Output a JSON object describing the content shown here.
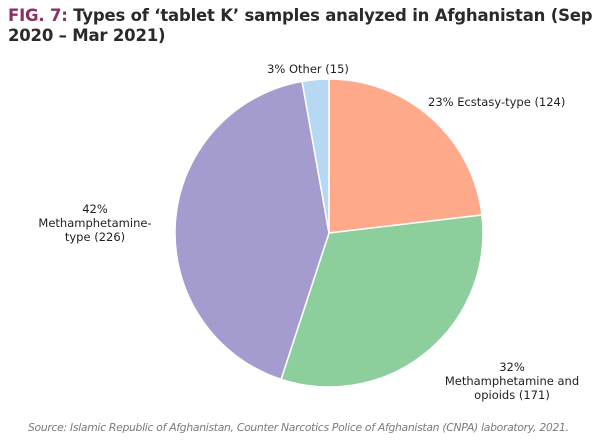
{
  "figure": {
    "label": "FIG. 7:",
    "title": "Types of ‘tablet K’ samples analyzed in Afghanistan (Sep 2020 – Mar 2021)"
  },
  "chart_data": {
    "type": "pie",
    "title": "Types of ‘tablet K’ samples analyzed in Afghanistan (Sep 2020 – Mar 2021)",
    "slices": [
      {
        "name": "Ecstasy-type",
        "percent": 23,
        "count": 124,
        "color": "#ffa98b",
        "label_lines": [
          "23% Ecstasy-type (124)"
        ]
      },
      {
        "name": "Methamphetamine and opioids",
        "percent": 32,
        "count": 171,
        "color": "#8dcf9c",
        "label_lines": [
          "32%",
          "Methamphetamine and",
          "opioids (171)"
        ]
      },
      {
        "name": "Methamphetamine-type",
        "percent": 42,
        "count": 226,
        "color": "#a49ccf",
        "label_lines": [
          "42%",
          "Methamphetamine-",
          "type (226)"
        ]
      },
      {
        "name": "Other",
        "percent": 3,
        "count": 15,
        "color": "#b7d8f2",
        "label_lines": [
          "3% Other (15)"
        ]
      }
    ],
    "start": "12 o'clock",
    "direction": "clockwise"
  },
  "source": "Source: Islamic Republic of Afghanistan, Counter Narcotics Police of Afghanistan (CNPA) laboratory, 2021."
}
